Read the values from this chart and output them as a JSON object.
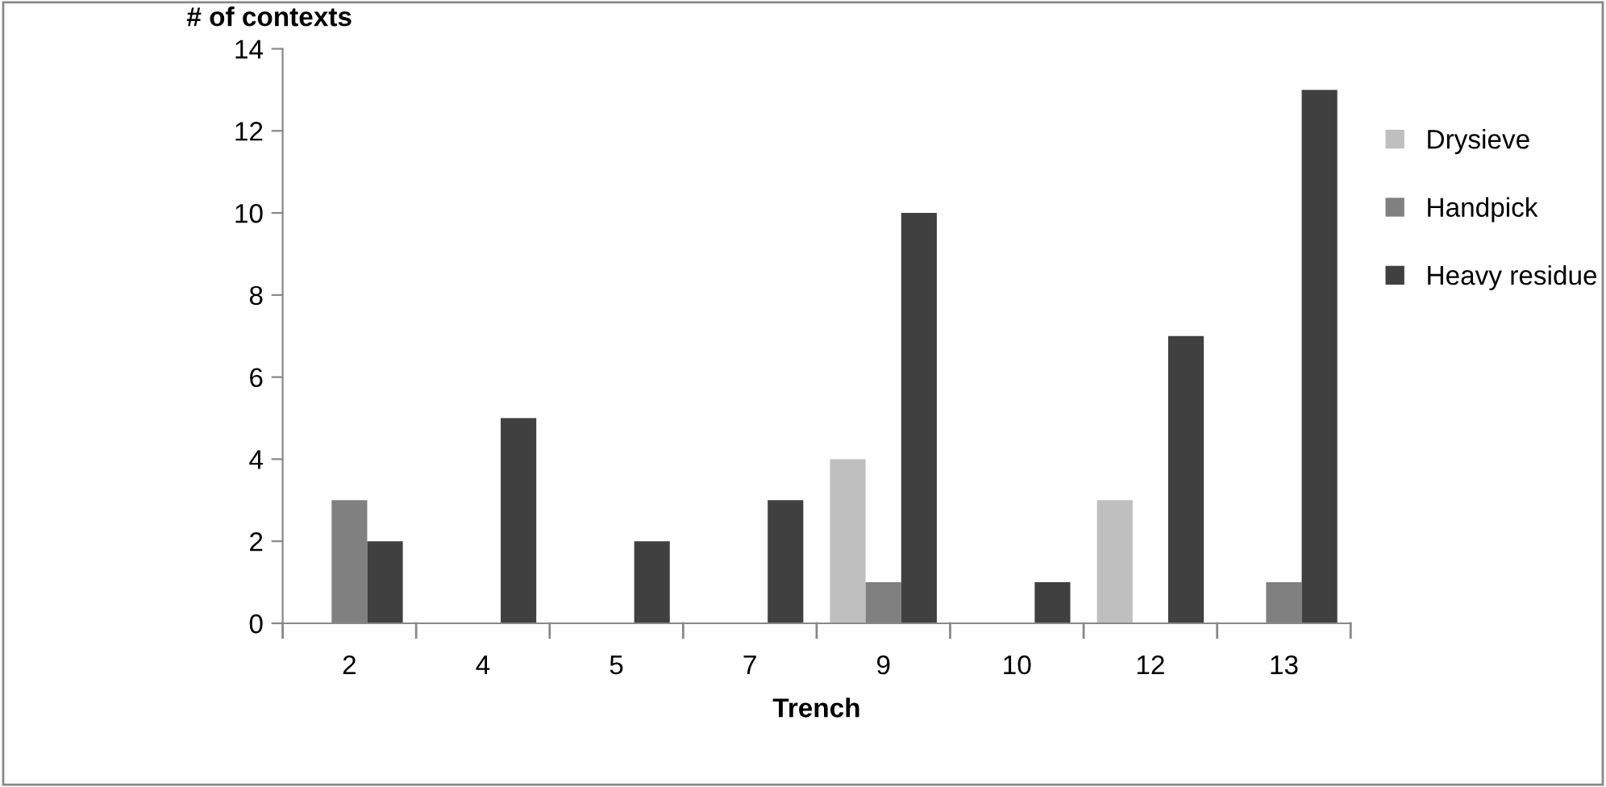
{
  "chart_data": {
    "type": "bar",
    "xlabel": "Trench",
    "ylabel": "# of contexts",
    "categories": [
      "2",
      "4",
      "5",
      "7",
      "9",
      "10",
      "12",
      "13"
    ],
    "series": [
      {
        "name": "Drysieve",
        "color": "#bfbfbf",
        "values": [
          0,
          0,
          0,
          0,
          4,
          0,
          3,
          0
        ]
      },
      {
        "name": "Handpick",
        "color": "#808080",
        "values": [
          3,
          0,
          0,
          0,
          1,
          0,
          0,
          1
        ]
      },
      {
        "name": "Heavy residue",
        "color": "#404040",
        "values": [
          2,
          5,
          2,
          3,
          10,
          1,
          7,
          13
        ]
      }
    ],
    "ylim": [
      0,
      14
    ],
    "yticks": [
      0,
      2,
      4,
      6,
      8,
      10,
      12,
      14
    ],
    "grid": false,
    "legend": "right"
  }
}
